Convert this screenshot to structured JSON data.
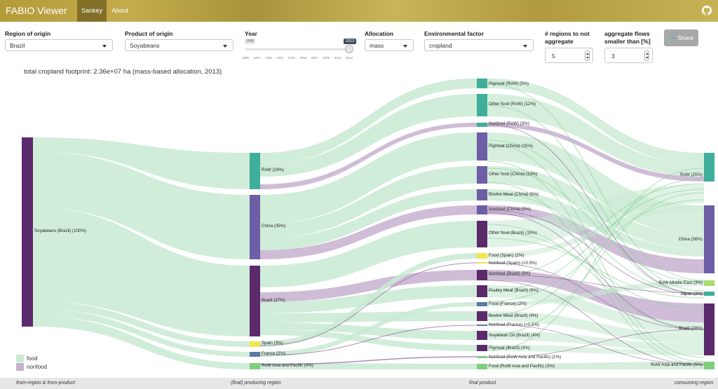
{
  "navbar": {
    "brand": "FABIO Viewer",
    "tabs": [
      "Sankey",
      "About"
    ],
    "github_icon": "github-icon"
  },
  "controls": {
    "region": {
      "label": "Region of origin",
      "value": "Brazil"
    },
    "product": {
      "label": "Product of origin",
      "value": "Soyabeans"
    },
    "year": {
      "label": "Year",
      "min": "1995",
      "value": "2013",
      "ticks": [
        "1995",
        "1997",
        "1999",
        "2001",
        "2003",
        "2005",
        "2007",
        "2009",
        "2011",
        "2013"
      ]
    },
    "allocation": {
      "label": "Allocation",
      "value": "mass"
    },
    "env_factor": {
      "label": "Environmental factor",
      "value": "cropland"
    },
    "regions_not_aggregate": {
      "label_line1": "# regions to not",
      "label_line2": "aggregate",
      "value": "5"
    },
    "aggregate_flows": {
      "label_line1": "aggregate flows",
      "label_line2": "smaller than [%]",
      "value": "3"
    },
    "share": {
      "label": "Share",
      "icon": "link-icon"
    }
  },
  "footprint_text": "total cropland footprint: 2.36e+07 ha (mass-based allocation, 2013)",
  "colors": {
    "food": "#c8ead2",
    "nonfood": "#c7b0d0",
    "dark_purple": "#5b2a6b",
    "mid_purple": "#6d5ea6",
    "teal": "#3fae9a",
    "yellow": "#f2e650",
    "green": "#7fcf7f",
    "slate": "#5a78a6",
    "navbar": "#b8a040"
  },
  "legend": [
    {
      "label": "food",
      "color": "#c8ead2"
    },
    {
      "label": "nonfood",
      "color": "#c7b0d0"
    }
  ],
  "columns": [
    "from-region & from-product",
    "(final) producing region",
    "final product",
    "consuming region"
  ],
  "chart_data": {
    "type": "sankey",
    "nodes": {
      "source": [
        {
          "label": "Soyabeans (Brazil) (100%)",
          "value": 100
        }
      ],
      "producing": [
        {
          "label": "RoW (19%)",
          "value": 19
        },
        {
          "label": "China (35%)",
          "value": 35
        },
        {
          "label": "Brazil (37%)",
          "value": 37
        },
        {
          "label": "Spain (3%)",
          "value": 3
        },
        {
          "label": "France (2%)",
          "value": 2
        },
        {
          "label": "RoW Asia and Pacific (4%)",
          "value": 4
        }
      ],
      "products": [
        {
          "label": "Pigmeat (RoW) (5%)",
          "value": 5
        },
        {
          "label": "Other food (RoW) (12%)",
          "value": 12
        },
        {
          "label": "Nonfood (RoW) (3%)",
          "value": 3
        },
        {
          "label": "Pigmeat (China) (15%)",
          "value": 15
        },
        {
          "label": "Other food (China) (10%)",
          "value": 10
        },
        {
          "label": "Bovine Meat (China) (5%)",
          "value": 5
        },
        {
          "label": "Nonfood (China) (5%)",
          "value": 5
        },
        {
          "label": "Other food (Brazil) (15%)",
          "value": 15
        },
        {
          "label": "Food (Spain) (2%)",
          "value": 2
        },
        {
          "label": "Nonfood (Spain) (<0.5%)",
          "value": 0.4
        },
        {
          "label": "Nonfood (Brazil) (5%)",
          "value": 5
        },
        {
          "label": "Poultry Meat (Brazil) (6%)",
          "value": 6
        },
        {
          "label": "Food (France) (2%)",
          "value": 2
        },
        {
          "label": "Bovine Meat (Brazil) (4%)",
          "value": 4
        },
        {
          "label": "Nonfood (France) (<0.5%)",
          "value": 0.4
        },
        {
          "label": "Soyabean Oil (Brazil) (4%)",
          "value": 4
        },
        {
          "label": "Pigmeat (Brazil) (3%)",
          "value": 3
        },
        {
          "label": "Nonfood (RoW Asia and Pacific) (1%)",
          "value": 1
        },
        {
          "label": "Food (RoW Asia and Pacific) (3%)",
          "value": 3
        }
      ],
      "consuming": [
        {
          "label": "RoW (25%)",
          "value": 25
        },
        {
          "label": "China (36%)",
          "value": 36
        },
        {
          "label": "RoW Middle East (3%)",
          "value": 3
        },
        {
          "label": "Japan (2%)",
          "value": 2
        },
        {
          "label": "Brazil (28%)",
          "value": 28
        },
        {
          "label": "RoW Asia and Pacific (5%)",
          "value": 5
        }
      ]
    }
  }
}
